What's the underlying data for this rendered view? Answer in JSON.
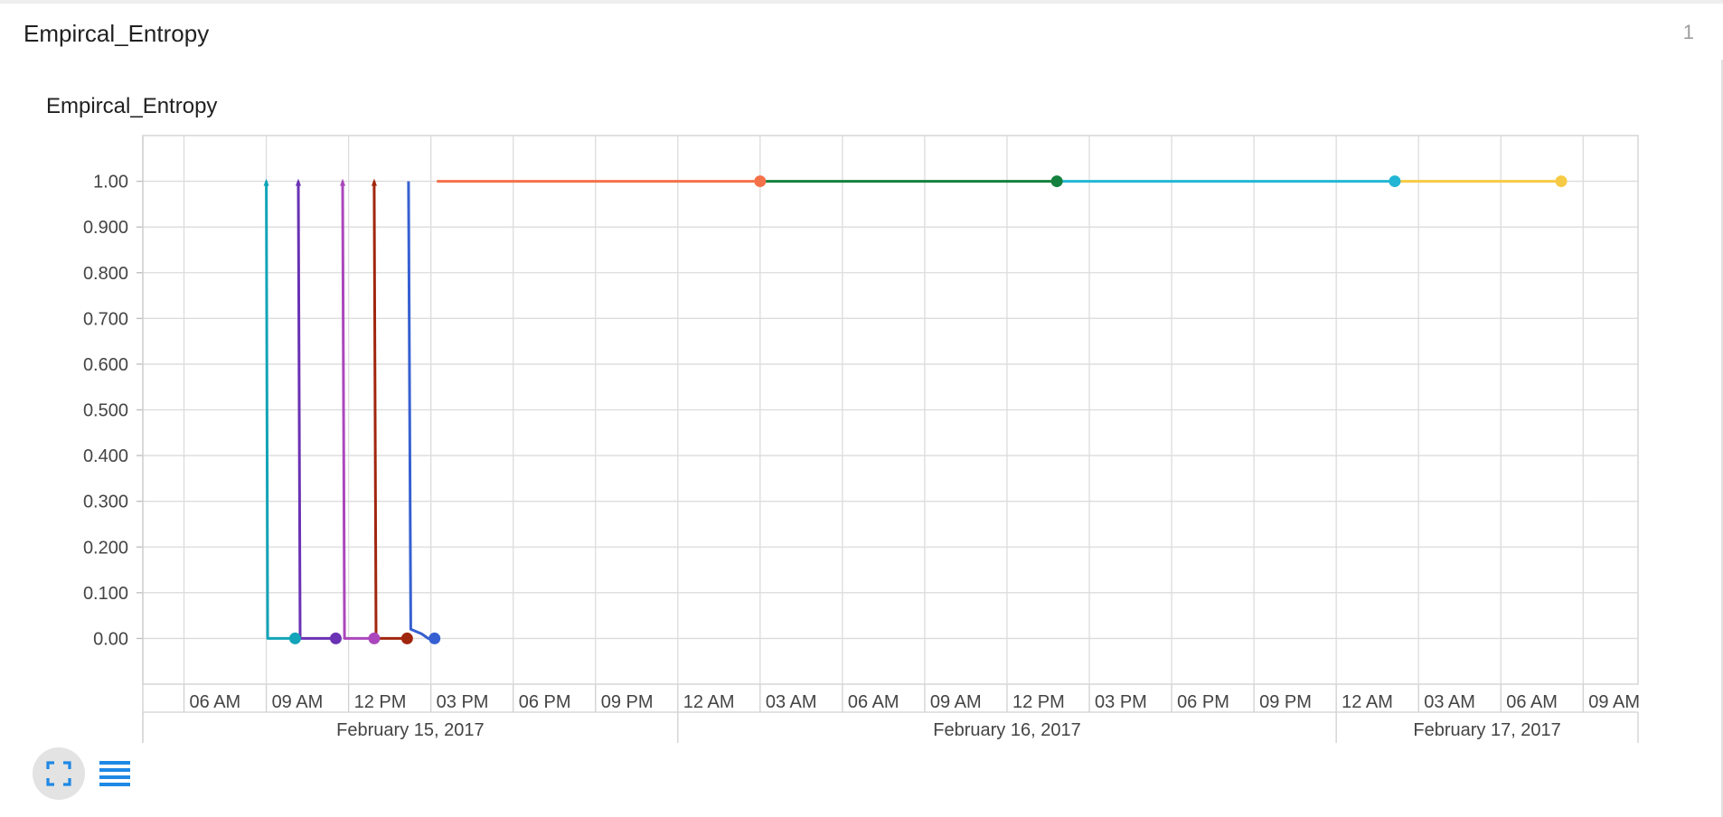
{
  "card": {
    "title": "Empircal_Entropy",
    "count": "1"
  },
  "chart_data": {
    "type": "line",
    "title": "Empircal_Entropy",
    "xlabel": "",
    "ylabel": "",
    "x_axis_kind": "datetime",
    "xlim": [
      "2017-02-15T04:30",
      "2017-02-17T11:00"
    ],
    "ylim": [
      -0.1,
      1.1
    ],
    "yticks": [
      {
        "value": 1.0,
        "label": "1.00"
      },
      {
        "value": 0.9,
        "label": "0.900"
      },
      {
        "value": 0.8,
        "label": "0.800"
      },
      {
        "value": 0.7,
        "label": "0.700"
      },
      {
        "value": 0.6,
        "label": "0.600"
      },
      {
        "value": 0.5,
        "label": "0.500"
      },
      {
        "value": 0.4,
        "label": "0.400"
      },
      {
        "value": 0.3,
        "label": "0.300"
      },
      {
        "value": 0.2,
        "label": "0.200"
      },
      {
        "value": 0.1,
        "label": "0.100"
      },
      {
        "value": 0.0,
        "label": "0.00"
      }
    ],
    "xticks": [
      {
        "t": "2017-02-15T06:00",
        "label": "06 AM"
      },
      {
        "t": "2017-02-15T09:00",
        "label": "09 AM"
      },
      {
        "t": "2017-02-15T12:00",
        "label": "12 PM"
      },
      {
        "t": "2017-02-15T15:00",
        "label": "03 PM"
      },
      {
        "t": "2017-02-15T18:00",
        "label": "06 PM"
      },
      {
        "t": "2017-02-15T21:00",
        "label": "09 PM"
      },
      {
        "t": "2017-02-16T00:00",
        "label": "12 AM"
      },
      {
        "t": "2017-02-16T03:00",
        "label": "03 AM"
      },
      {
        "t": "2017-02-16T06:00",
        "label": "06 AM"
      },
      {
        "t": "2017-02-16T09:00",
        "label": "09 AM"
      },
      {
        "t": "2017-02-16T12:00",
        "label": "12 PM"
      },
      {
        "t": "2017-02-16T15:00",
        "label": "03 PM"
      },
      {
        "t": "2017-02-16T18:00",
        "label": "06 PM"
      },
      {
        "t": "2017-02-16T21:00",
        "label": "09 PM"
      },
      {
        "t": "2017-02-17T00:00",
        "label": "12 AM"
      },
      {
        "t": "2017-02-17T03:00",
        "label": "03 AM"
      },
      {
        "t": "2017-02-17T06:00",
        "label": "06 AM"
      },
      {
        "t": "2017-02-17T09:00",
        "label": "09 AM"
      }
    ],
    "date_groups": [
      {
        "start": "2017-02-15T04:30",
        "end": "2017-02-16T00:00",
        "label": "February 15, 2017"
      },
      {
        "start": "2017-02-16T00:00",
        "end": "2017-02-17T00:00",
        "label": "February 16, 2017"
      },
      {
        "start": "2017-02-17T00:00",
        "end": "2017-02-17T11:00",
        "label": "February 17, 2017"
      }
    ],
    "grid": true,
    "legend": "none",
    "series": [
      {
        "color": "#12a4b8",
        "points": [
          [
            "2017-02-15T09:00",
            1.0
          ],
          [
            "2017-02-15T09:03",
            0.0
          ],
          [
            "2017-02-15T10:03",
            0.0
          ]
        ]
      },
      {
        "color": "#6a32b4",
        "points": [
          [
            "2017-02-15T10:10",
            1.0
          ],
          [
            "2017-02-15T10:14",
            0.0
          ],
          [
            "2017-02-15T11:32",
            0.0
          ]
        ]
      },
      {
        "color": "#ab47bc",
        "points": [
          [
            "2017-02-15T11:47",
            1.0
          ],
          [
            "2017-02-15T11:51",
            0.0
          ],
          [
            "2017-02-15T12:56",
            0.0
          ]
        ]
      },
      {
        "color": "#a1260e",
        "points": [
          [
            "2017-02-15T12:56",
            1.0
          ],
          [
            "2017-02-15T13:00",
            0.0
          ],
          [
            "2017-02-15T14:08",
            0.0
          ]
        ]
      },
      {
        "color": "#3660d1",
        "points": [
          [
            "2017-02-15T14:11",
            1.0
          ],
          [
            "2017-02-15T14:16",
            0.02
          ],
          [
            "2017-02-15T14:40",
            0.01
          ],
          [
            "2017-02-15T14:54",
            0.0
          ],
          [
            "2017-02-15T15:08",
            0.0
          ]
        ]
      },
      {
        "color": "#f5714a",
        "points": [
          [
            "2017-02-15T15:13",
            1.0
          ],
          [
            "2017-02-16T03:00",
            1.0
          ]
        ]
      },
      {
        "color": "#14803d",
        "points": [
          [
            "2017-02-16T03:00",
            1.0
          ],
          [
            "2017-02-16T13:49",
            1.0
          ]
        ]
      },
      {
        "color": "#22b6d4",
        "points": [
          [
            "2017-02-16T13:49",
            1.0
          ],
          [
            "2017-02-17T02:08",
            1.0
          ]
        ]
      },
      {
        "color": "#f7ca45",
        "points": [
          [
            "2017-02-17T02:08",
            1.0
          ],
          [
            "2017-02-17T08:12",
            1.0
          ]
        ]
      }
    ]
  },
  "toolbar": {
    "expand_icon": "fullscreen-expand-icon",
    "data_icon": "data-table-icon"
  }
}
